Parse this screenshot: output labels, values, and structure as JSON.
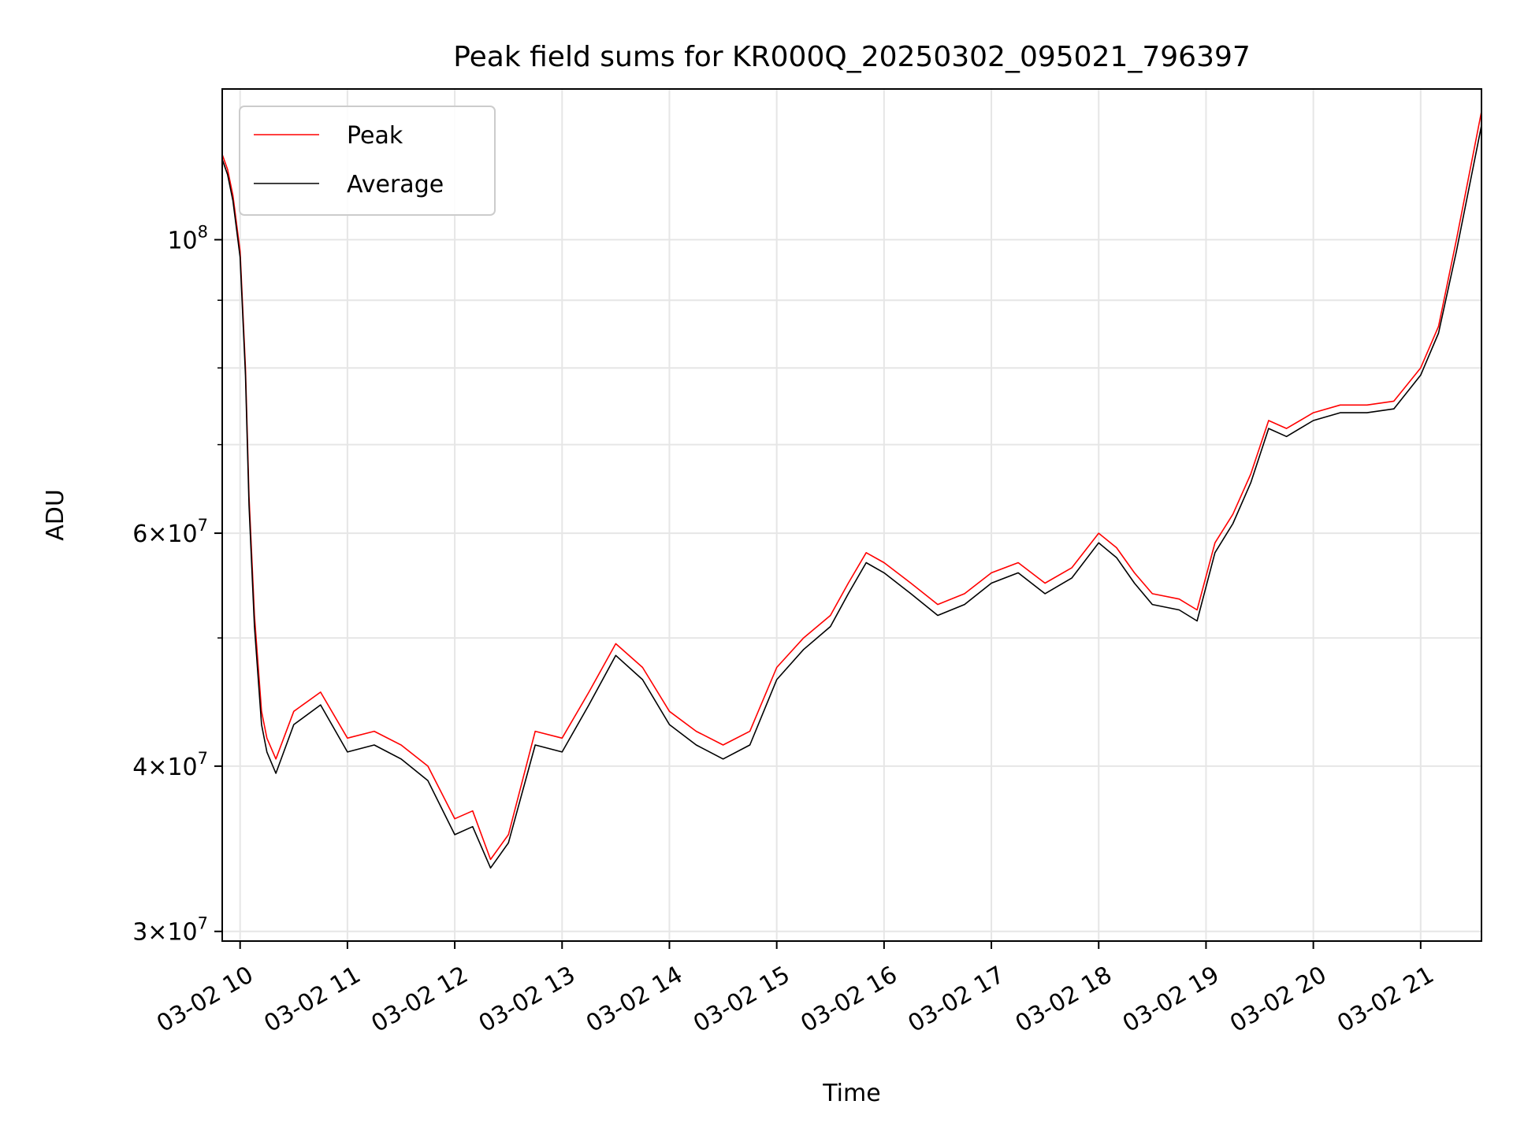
{
  "chart_data": {
    "type": "line",
    "title": "Peak field sums for KR000Q_20250302_095021_796397",
    "xlabel": "Time",
    "ylabel": "ADU",
    "y_scale": "log",
    "ylim": [
      29500000,
      130000000
    ],
    "xlim": [
      "2025-03-02 09:50",
      "2025-03-02 21:34"
    ],
    "grid": true,
    "legend_position": "upper left",
    "x_ticks": [
      {
        "time": "2025-03-02 10:00",
        "label": "03-02 10"
      },
      {
        "time": "2025-03-02 11:00",
        "label": "03-02 11"
      },
      {
        "time": "2025-03-02 12:00",
        "label": "03-02 12"
      },
      {
        "time": "2025-03-02 13:00",
        "label": "03-02 13"
      },
      {
        "time": "2025-03-02 14:00",
        "label": "03-02 14"
      },
      {
        "time": "2025-03-02 15:00",
        "label": "03-02 15"
      },
      {
        "time": "2025-03-02 16:00",
        "label": "03-02 16"
      },
      {
        "time": "2025-03-02 17:00",
        "label": "03-02 17"
      },
      {
        "time": "2025-03-02 18:00",
        "label": "03-02 18"
      },
      {
        "time": "2025-03-02 19:00",
        "label": "03-02 19"
      },
      {
        "time": "2025-03-02 20:00",
        "label": "03-02 20"
      },
      {
        "time": "2025-03-02 21:00",
        "label": "03-02 21"
      }
    ],
    "y_ticks": [
      {
        "value": 30000000,
        "base": "3",
        "exp": "7"
      },
      {
        "value": 40000000,
        "base": "4",
        "exp": "7"
      },
      {
        "value": 60000000,
        "base": "6",
        "exp": "7"
      },
      {
        "value": 100000000,
        "base": "",
        "exp": "8"
      }
    ],
    "y_minor_ticks": [
      50000000,
      70000000,
      80000000,
      90000000
    ],
    "x_times": [
      "2025-03-02 09:50",
      "2025-03-02 09:53",
      "2025-03-02 09:56",
      "2025-03-02 10:00",
      "2025-03-02 10:03",
      "2025-03-02 10:05",
      "2025-03-02 10:08",
      "2025-03-02 10:12",
      "2025-03-02 10:15",
      "2025-03-02 10:20",
      "2025-03-02 10:30",
      "2025-03-02 10:45",
      "2025-03-02 11:00",
      "2025-03-02 11:15",
      "2025-03-02 11:30",
      "2025-03-02 11:45",
      "2025-03-02 12:00",
      "2025-03-02 12:10",
      "2025-03-02 12:20",
      "2025-03-02 12:30",
      "2025-03-02 12:45",
      "2025-03-02 13:00",
      "2025-03-02 13:15",
      "2025-03-02 13:30",
      "2025-03-02 13:45",
      "2025-03-02 14:00",
      "2025-03-02 14:15",
      "2025-03-02 14:30",
      "2025-03-02 14:45",
      "2025-03-02 15:00",
      "2025-03-02 15:15",
      "2025-03-02 15:30",
      "2025-03-02 15:40",
      "2025-03-02 15:50",
      "2025-03-02 16:00",
      "2025-03-02 16:15",
      "2025-03-02 16:30",
      "2025-03-02 16:45",
      "2025-03-02 17:00",
      "2025-03-02 17:15",
      "2025-03-02 17:30",
      "2025-03-02 17:45",
      "2025-03-02 18:00",
      "2025-03-02 18:10",
      "2025-03-02 18:20",
      "2025-03-02 18:30",
      "2025-03-02 18:45",
      "2025-03-02 18:55",
      "2025-03-02 19:05",
      "2025-03-02 19:15",
      "2025-03-02 19:25",
      "2025-03-02 19:35",
      "2025-03-02 19:45",
      "2025-03-02 20:00",
      "2025-03-02 20:15",
      "2025-03-02 20:30",
      "2025-03-02 20:45",
      "2025-03-02 21:00",
      "2025-03-02 21:10",
      "2025-03-02 21:20",
      "2025-03-02 21:34"
    ],
    "series": [
      {
        "name": "Peak",
        "color": "#ff0000",
        "values": [
          116000000,
          113000000,
          108000000,
          98000000,
          80000000,
          64000000,
          52000000,
          44000000,
          42000000,
          40500000,
          44000000,
          45500000,
          42000000,
          42500000,
          41500000,
          40000000,
          36500000,
          37000000,
          34000000,
          35500000,
          42500000,
          42000000,
          45500000,
          49500000,
          47500000,
          44000000,
          42500000,
          41500000,
          42500000,
          47500000,
          50000000,
          52000000,
          55000000,
          58000000,
          57000000,
          55000000,
          53000000,
          54000000,
          56000000,
          57000000,
          55000000,
          56500000,
          60000000,
          58500000,
          56000000,
          54000000,
          53500000,
          52500000,
          59000000,
          62000000,
          66500000,
          73000000,
          72000000,
          74000000,
          75000000,
          75000000,
          75500000,
          80000000,
          86000000,
          100000000,
          125000000
        ]
      },
      {
        "name": "Average",
        "color": "#000000",
        "values": [
          115000000,
          112000000,
          107000000,
          97000000,
          79000000,
          63000000,
          51000000,
          43000000,
          41000000,
          39500000,
          43000000,
          44500000,
          41000000,
          41500000,
          40500000,
          39000000,
          35500000,
          36000000,
          33500000,
          35000000,
          41500000,
          41000000,
          44500000,
          48500000,
          46500000,
          43000000,
          41500000,
          40500000,
          41500000,
          46500000,
          49000000,
          51000000,
          54000000,
          57000000,
          56000000,
          54000000,
          52000000,
          53000000,
          55000000,
          56000000,
          54000000,
          55500000,
          59000000,
          57500000,
          55000000,
          53000000,
          52500000,
          51500000,
          58000000,
          61000000,
          65500000,
          72000000,
          71000000,
          73000000,
          74000000,
          74000000,
          74500000,
          79000000,
          85000000,
          98000000,
          122000000
        ]
      }
    ]
  }
}
